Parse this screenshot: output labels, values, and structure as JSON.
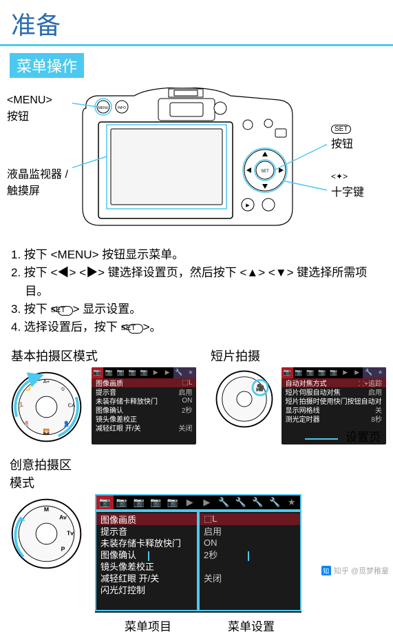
{
  "title": "准备",
  "section": "菜单操作",
  "camera_labels": {
    "menu_button": "<MENU>\n按钮",
    "lcd_touch": "液晶监视器 /\n触摸屏",
    "set_button": "<SET>\n按钮",
    "cross_keys": "十字键",
    "cross_keys_icon": "✦"
  },
  "steps": [
    "1. 按下 <MENU> 按钮显示菜单。",
    "2. 按下 <◀> <▶> 键选择设置页，然后按下 <▲> <▼> 键选择所需项目。",
    "3. 按下 <SET> 显示设置。",
    "4. 选择设置后，按下 <SET>。"
  ],
  "mode_titles": {
    "basic": "基本拍摄区模式",
    "movie": "短片拍摄"
  },
  "creative_title": "创意拍摄区\n模式",
  "settings_tab_label": "设置页",
  "bottom_labels": {
    "items": "菜单项目",
    "settings": "菜单设置"
  },
  "menu_basic": {
    "tabs_red": 1,
    "rows": [
      {
        "lbl": "图像画质",
        "val": "⬚L",
        "sel": true
      },
      {
        "lbl": "提示音",
        "val": "启用"
      },
      {
        "lbl": "未装存储卡释放快门",
        "val": "ON"
      },
      {
        "lbl": "图像确认",
        "val": "2秒"
      },
      {
        "lbl": "镜头像差校正",
        "val": ""
      },
      {
        "lbl": "减轻红眼 开/关",
        "val": "关闭"
      }
    ]
  },
  "menu_movie": {
    "tabs_red": 1,
    "rows": [
      {
        "lbl": "自动对焦方式",
        "val": "⸬+追踪",
        "sel": true
      },
      {
        "lbl": "短片伺服自动对焦",
        "val": "启用"
      },
      {
        "lbl": "短片拍摄时使用快门按钮自动对焦",
        "val": ""
      },
      {
        "lbl": "显示网格线",
        "val": "关"
      },
      {
        "lbl": "测光定时器",
        "val": "8秒"
      }
    ]
  },
  "menu_big": {
    "tabs": [
      "📷",
      "📷",
      "📷",
      "📷",
      "📷",
      "▶",
      "▶",
      "🔧",
      "🔧",
      "🔧",
      "🔧",
      "★"
    ],
    "left": [
      {
        "t": "图像画质",
        "sel": true
      },
      {
        "t": "提示音"
      },
      {
        "t": "未装存储卡释放快门"
      },
      {
        "t": "图像确认"
      },
      {
        "t": "镜头像差校正"
      },
      {
        "t": "减轻红眼 开/关"
      },
      {
        "t": "闪光灯控制"
      }
    ],
    "right": [
      {
        "t": "⬚L",
        "sel": true
      },
      {
        "t": "启用"
      },
      {
        "t": "ON"
      },
      {
        "t": "2秒"
      },
      {
        "t": ""
      },
      {
        "t": "关闭"
      },
      {
        "t": ""
      }
    ]
  },
  "watermark": "知乎 @觅梦稚童"
}
